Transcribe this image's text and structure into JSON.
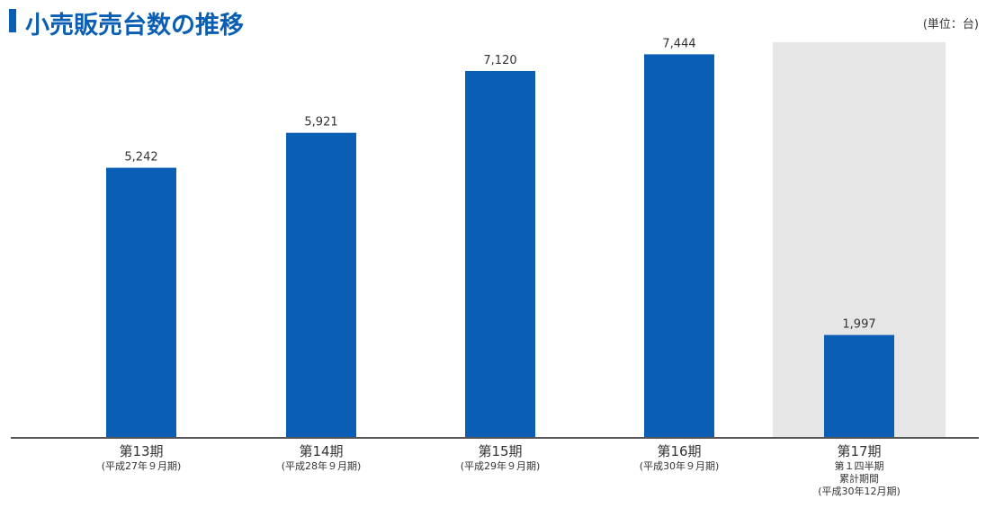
{
  "title": "小売販売台数の推移",
  "unit_label": "(単位：台)",
  "colors": {
    "bar": "#0a5fb5",
    "highlight_bg": "#e6e6e6",
    "axis": "#555555"
  },
  "chart_data": {
    "type": "bar",
    "title": "小売販売台数の推移",
    "xlabel": "",
    "ylabel": "",
    "ylim": [
      0,
      7800
    ],
    "grid": false,
    "categories": [
      [
        "第13期",
        "(平成27年９月期)"
      ],
      [
        "第14期",
        "(平成28年９月期)"
      ],
      [
        "第15期",
        "(平成29年９月期)"
      ],
      [
        "第16期",
        "(平成30年９月期)"
      ],
      [
        "第17期",
        "第１四半期",
        "累計期間",
        "(平成30年12月期)"
      ]
    ],
    "values": [
      5242,
      5921,
      7120,
      7444,
      1997
    ],
    "value_labels": [
      "5,242",
      "5,921",
      "7,120",
      "7,444",
      "1,997"
    ],
    "highlighted_index": 4
  }
}
